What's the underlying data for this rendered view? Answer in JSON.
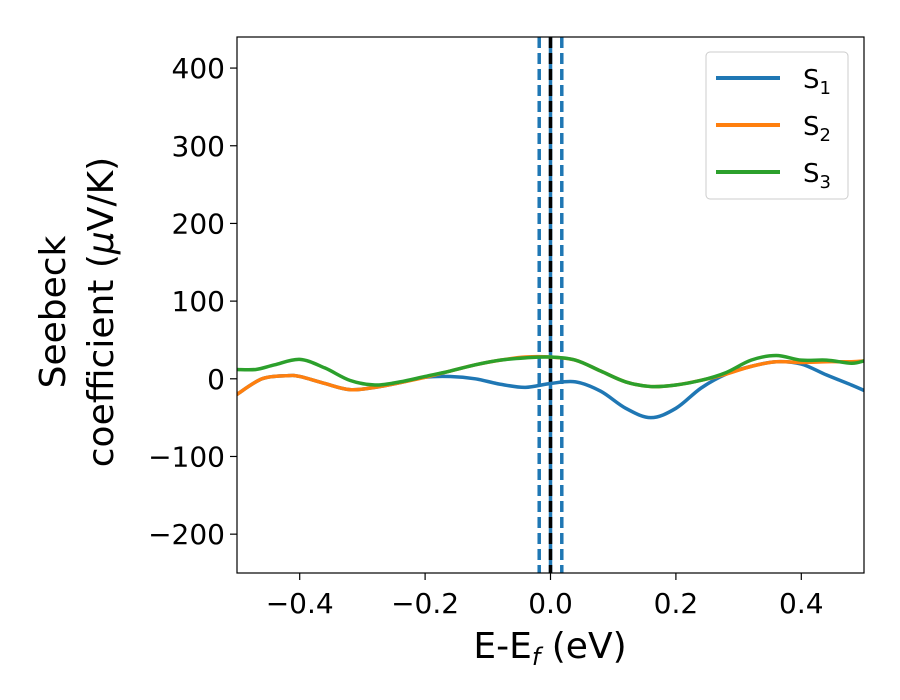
{
  "chart_data": {
    "type": "line",
    "xlabel": {
      "main": "E-E",
      "sub": "f",
      "unit": " (eV)"
    },
    "ylabel": {
      "line1": "Seebeck",
      "line2_pre": "coefficient  (",
      "mu": "μ",
      "line2_post": "V/K)"
    },
    "xlim": [
      -0.5,
      0.5
    ],
    "ylim": [
      -250,
      440
    ],
    "x_ticks": [
      -0.4,
      -0.2,
      0.0,
      0.2,
      0.4
    ],
    "x_tick_labels": [
      "−0.4",
      "−0.2",
      "0.0",
      "0.2",
      "0.4"
    ],
    "y_ticks": [
      -200,
      -100,
      0,
      100,
      200,
      300,
      400
    ],
    "y_tick_labels": [
      "−200",
      "−100",
      "0",
      "100",
      "200",
      "300",
      "400"
    ],
    "grid": false,
    "legend_position": "top-right",
    "vertical_lines": [
      {
        "x": -0.018,
        "style": "dashed",
        "color": "#1f77b4"
      },
      {
        "x": 0.018,
        "style": "dashed",
        "color": "#1f77b4"
      },
      {
        "x": 0.0,
        "style": "solid",
        "color": "#1f77b4"
      },
      {
        "x": 0.0,
        "style": "dashed",
        "color": "#000000"
      }
    ],
    "series": [
      {
        "name": "S",
        "sub": "1",
        "color": "#1f77b4",
        "x": [
          -0.5,
          -0.46,
          -0.42,
          -0.4,
          -0.36,
          -0.32,
          -0.28,
          -0.24,
          -0.2,
          -0.16,
          -0.12,
          -0.08,
          -0.04,
          0.0,
          0.04,
          0.08,
          0.12,
          0.16,
          0.2,
          0.24,
          0.28,
          0.32,
          0.36,
          0.4,
          0.44,
          0.48,
          0.5
        ],
        "y": [
          -20,
          0,
          4,
          3,
          -6,
          -14,
          -11,
          -5,
          2,
          3,
          0,
          -7,
          -11,
          -6,
          -4,
          -16,
          -38,
          -50,
          -38,
          -12,
          6,
          16,
          22,
          19,
          5,
          -8,
          -15
        ]
      },
      {
        "name": "S",
        "sub": "2",
        "color": "#ff7f0e",
        "x": [
          -0.5,
          -0.46,
          -0.42,
          -0.4,
          -0.36,
          -0.32,
          -0.28,
          -0.24,
          -0.2,
          -0.16,
          -0.12,
          -0.08,
          -0.04,
          0.0,
          0.04,
          0.08,
          0.12,
          0.16,
          0.2,
          0.24,
          0.28,
          0.32,
          0.36,
          0.4,
          0.44,
          0.48,
          0.5
        ],
        "y": [
          -20,
          0,
          4,
          3,
          -6,
          -14,
          -11,
          -5,
          2,
          10,
          18,
          24,
          28,
          28,
          24,
          10,
          -4,
          -10,
          -8,
          -2,
          6,
          16,
          22,
          21,
          22,
          22,
          23
        ]
      },
      {
        "name": "S",
        "sub": "3",
        "color": "#2ca02c",
        "x": [
          -0.5,
          -0.47,
          -0.44,
          -0.4,
          -0.36,
          -0.32,
          -0.28,
          -0.24,
          -0.2,
          -0.16,
          -0.12,
          -0.08,
          -0.04,
          0.0,
          0.04,
          0.08,
          0.12,
          0.16,
          0.2,
          0.24,
          0.28,
          0.32,
          0.36,
          0.4,
          0.44,
          0.48,
          0.5
        ],
        "y": [
          12,
          12,
          18,
          25,
          14,
          -2,
          -8,
          -4,
          3,
          10,
          18,
          24,
          27,
          28,
          24,
          10,
          -4,
          -10,
          -8,
          -2,
          8,
          24,
          30,
          24,
          24,
          20,
          23
        ]
      }
    ]
  }
}
